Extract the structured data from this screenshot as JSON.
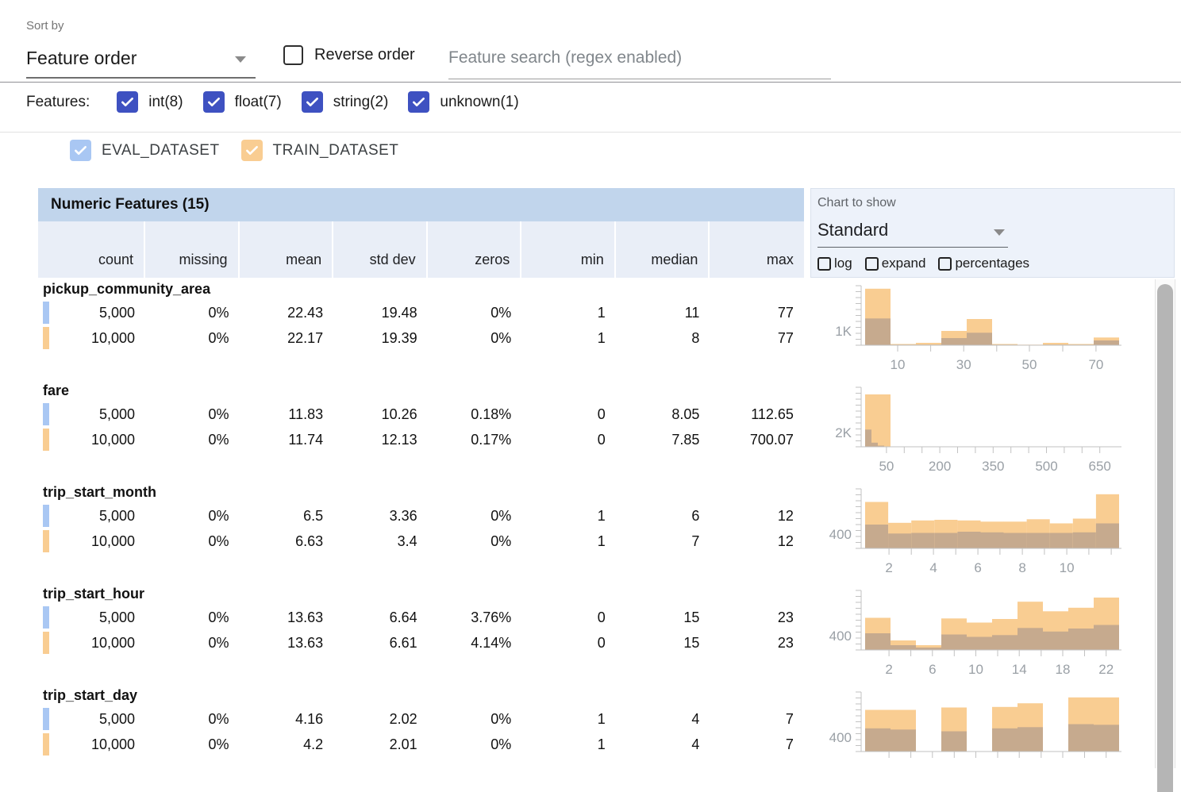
{
  "toolbar": {
    "sort_by_label": "Sort by",
    "sort_value": "Feature order",
    "reverse_label": "Reverse order",
    "search_placeholder": "Feature search (regex enabled)"
  },
  "filters": {
    "label": "Features:",
    "items": [
      {
        "label": "int(8)",
        "checked": true
      },
      {
        "label": "float(7)",
        "checked": true
      },
      {
        "label": "string(2)",
        "checked": true
      },
      {
        "label": "unknown(1)",
        "checked": true
      }
    ]
  },
  "datasets": [
    {
      "label": "EVAL_DATASET",
      "checked": true,
      "color": "#a9c7f3"
    },
    {
      "label": "TRAIN_DATASET",
      "checked": true,
      "color": "#f9cd92"
    }
  ],
  "table": {
    "title": "Numeric Features (15)",
    "columns": [
      "count",
      "missing",
      "mean",
      "std dev",
      "zeros",
      "min",
      "median",
      "max"
    ],
    "features": [
      {
        "name": "pickup_community_area",
        "rows": [
          {
            "dataset": "eval",
            "values": [
              "5,000",
              "0%",
              "22.43",
              "19.48",
              "0%",
              "1",
              "11",
              "77"
            ]
          },
          {
            "dataset": "train",
            "values": [
              "10,000",
              "0%",
              "22.17",
              "19.39",
              "0%",
              "1",
              "8",
              "77"
            ]
          }
        ]
      },
      {
        "name": "fare",
        "rows": [
          {
            "dataset": "eval",
            "values": [
              "5,000",
              "0%",
              "11.83",
              "10.26",
              "0.18%",
              "0",
              "8.05",
              "112.65"
            ]
          },
          {
            "dataset": "train",
            "values": [
              "10,000",
              "0%",
              "11.74",
              "12.13",
              "0.17%",
              "0",
              "7.85",
              "700.07"
            ]
          }
        ]
      },
      {
        "name": "trip_start_month",
        "rows": [
          {
            "dataset": "eval",
            "values": [
              "5,000",
              "0%",
              "6.5",
              "3.36",
              "0%",
              "1",
              "6",
              "12"
            ]
          },
          {
            "dataset": "train",
            "values": [
              "10,000",
              "0%",
              "6.63",
              "3.4",
              "0%",
              "1",
              "7",
              "12"
            ]
          }
        ]
      },
      {
        "name": "trip_start_hour",
        "rows": [
          {
            "dataset": "eval",
            "values": [
              "5,000",
              "0%",
              "13.63",
              "6.64",
              "3.76%",
              "0",
              "15",
              "23"
            ]
          },
          {
            "dataset": "train",
            "values": [
              "10,000",
              "0%",
              "13.63",
              "6.61",
              "4.14%",
              "0",
              "15",
              "23"
            ]
          }
        ]
      },
      {
        "name": "trip_start_day",
        "rows": [
          {
            "dataset": "eval",
            "values": [
              "5,000",
              "0%",
              "4.16",
              "2.02",
              "0%",
              "1",
              "4",
              "7"
            ]
          },
          {
            "dataset": "train",
            "values": [
              "10,000",
              "0%",
              "4.2",
              "2.01",
              "0%",
              "1",
              "4",
              "7"
            ]
          }
        ]
      }
    ]
  },
  "chart_controls": {
    "label": "Chart to show",
    "value": "Standard",
    "options": [
      {
        "label": "log",
        "checked": false
      },
      {
        "label": "expand",
        "checked": false
      },
      {
        "label": "percentages",
        "checked": false
      }
    ]
  },
  "charts": [
    {
      "feature": "pickup_community_area",
      "type": "overlaid-histogram",
      "y_label": "1K",
      "x_labels": [
        {
          "t": "10",
          "f": 0.128
        },
        {
          "t": "30",
          "f": 0.388
        },
        {
          "t": "50",
          "f": 0.647
        },
        {
          "t": "70",
          "f": 0.909
        }
      ],
      "x_ticks": [
        0.128,
        0.258,
        0.388,
        0.518,
        0.647,
        0.778,
        0.909
      ],
      "bars": [
        [
          0.95,
          0.45
        ],
        [
          0.02,
          0.01
        ],
        [
          0.04,
          0.01
        ],
        [
          0.24,
          0.12
        ],
        [
          0.44,
          0.21
        ],
        [
          0.02,
          0.01
        ],
        [
          0.01,
          0.0
        ],
        [
          0.04,
          0.01
        ],
        [
          0.02,
          0.01
        ],
        [
          0.13,
          0.08
        ]
      ]
    },
    {
      "feature": "fare",
      "type": "overlaid-histogram",
      "y_label": "2K",
      "x_labels": [
        {
          "t": "50",
          "f": 0.084
        },
        {
          "t": "200",
          "f": 0.294
        },
        {
          "t": "350",
          "f": 0.504
        },
        {
          "t": "500",
          "f": 0.714
        },
        {
          "t": "650",
          "f": 0.924
        }
      ],
      "x_ticks": [
        0.084,
        0.154,
        0.224,
        0.294,
        0.364,
        0.434,
        0.504,
        0.574,
        0.644,
        0.714,
        0.784,
        0.854,
        0.924
      ],
      "bars": [
        [
          0.88,
          0.29
        ],
        [
          0.88,
          0.07
        ],
        [
          0.88,
          0.02
        ],
        [
          0.88,
          0.0
        ],
        [
          0,
          0
        ],
        [
          0,
          0
        ],
        [
          0,
          0
        ],
        [
          0,
          0
        ],
        [
          0,
          0
        ],
        [
          0,
          0
        ],
        [
          0,
          0
        ],
        [
          0,
          0
        ],
        [
          0,
          0
        ],
        [
          0,
          0
        ],
        [
          0,
          0
        ],
        [
          0,
          0
        ],
        [
          0,
          0
        ],
        [
          0,
          0
        ],
        [
          0,
          0
        ],
        [
          0,
          0
        ],
        [
          0,
          0
        ],
        [
          0,
          0
        ],
        [
          0,
          0
        ],
        [
          0,
          0
        ],
        [
          0,
          0
        ],
        [
          0,
          0
        ],
        [
          0,
          0
        ],
        [
          0,
          0
        ],
        [
          0,
          0
        ],
        [
          0,
          0
        ],
        [
          0,
          0
        ],
        [
          0,
          0
        ],
        [
          0,
          0
        ],
        [
          0,
          0
        ],
        [
          0,
          0
        ],
        [
          0,
          0
        ],
        [
          0,
          0
        ],
        [
          0,
          0
        ],
        [
          0,
          0
        ],
        [
          0,
          0
        ]
      ]
    },
    {
      "feature": "trip_start_month",
      "type": "overlaid-histogram",
      "y_label": "400",
      "x_labels": [
        {
          "t": "2",
          "f": 0.094
        },
        {
          "t": "4",
          "f": 0.269
        },
        {
          "t": "6",
          "f": 0.444
        },
        {
          "t": "8",
          "f": 0.619
        },
        {
          "t": "10",
          "f": 0.794
        }
      ],
      "x_ticks": [
        0.094,
        0.182,
        0.269,
        0.357,
        0.444,
        0.531,
        0.619,
        0.706,
        0.794,
        0.881,
        0.969
      ],
      "bars": [
        [
          0.78,
          0.4
        ],
        [
          0.43,
          0.25
        ],
        [
          0.47,
          0.26
        ],
        [
          0.48,
          0.26
        ],
        [
          0.47,
          0.28
        ],
        [
          0.45,
          0.27
        ],
        [
          0.45,
          0.26
        ],
        [
          0.49,
          0.26
        ],
        [
          0.42,
          0.26
        ],
        [
          0.5,
          0.27
        ],
        [
          0.91,
          0.42
        ]
      ]
    },
    {
      "feature": "trip_start_hour",
      "type": "overlaid-histogram",
      "y_label": "400",
      "x_labels": [
        {
          "t": "2",
          "f": 0.094
        },
        {
          "t": "6",
          "f": 0.265
        },
        {
          "t": "10",
          "f": 0.436
        },
        {
          "t": "14",
          "f": 0.607
        },
        {
          "t": "18",
          "f": 0.778
        },
        {
          "t": "22",
          "f": 0.949
        }
      ],
      "x_ticks": [
        0.094,
        0.18,
        0.265,
        0.351,
        0.436,
        0.522,
        0.607,
        0.693,
        0.778,
        0.864,
        0.949
      ],
      "bars": [
        [
          0.54,
          0.28
        ],
        [
          0.16,
          0.08
        ],
        [
          0.08,
          0.04
        ],
        [
          0.53,
          0.26
        ],
        [
          0.46,
          0.22
        ],
        [
          0.52,
          0.25
        ],
        [
          0.81,
          0.37
        ],
        [
          0.65,
          0.31
        ],
        [
          0.71,
          0.36
        ],
        [
          0.88,
          0.42
        ]
      ]
    },
    {
      "feature": "trip_start_day",
      "type": "overlaid-histogram",
      "y_label": "400",
      "x_labels": [],
      "x_ticks": [
        0.094,
        0.18,
        0.265,
        0.351,
        0.436,
        0.522,
        0.607,
        0.693,
        0.778,
        0.864,
        0.949
      ],
      "bars": [
        [
          0.7,
          0.39
        ],
        [
          0.7,
          0.37
        ],
        [
          0,
          0
        ],
        [
          0.74,
          0.34
        ],
        [
          0,
          0
        ],
        [
          0.75,
          0.39
        ],
        [
          0.81,
          0.41
        ],
        [
          0,
          0
        ],
        [
          0.91,
          0.46
        ],
        [
          0.91,
          0.45
        ]
      ]
    }
  ],
  "colors": {
    "accent_indigo": "#3e51c1",
    "eval_blue": "#a9c7f3",
    "train_orange": "#f9cd92",
    "overlap_brown": "#c6aa8e",
    "title_band_blue": "#c1d5ec",
    "header_band_blue": "#e9eef7",
    "panel_bg_blue": "#edf2fa",
    "axis_gray": "#c2c2c2",
    "tick_label_gray": "#9aa0a6"
  }
}
